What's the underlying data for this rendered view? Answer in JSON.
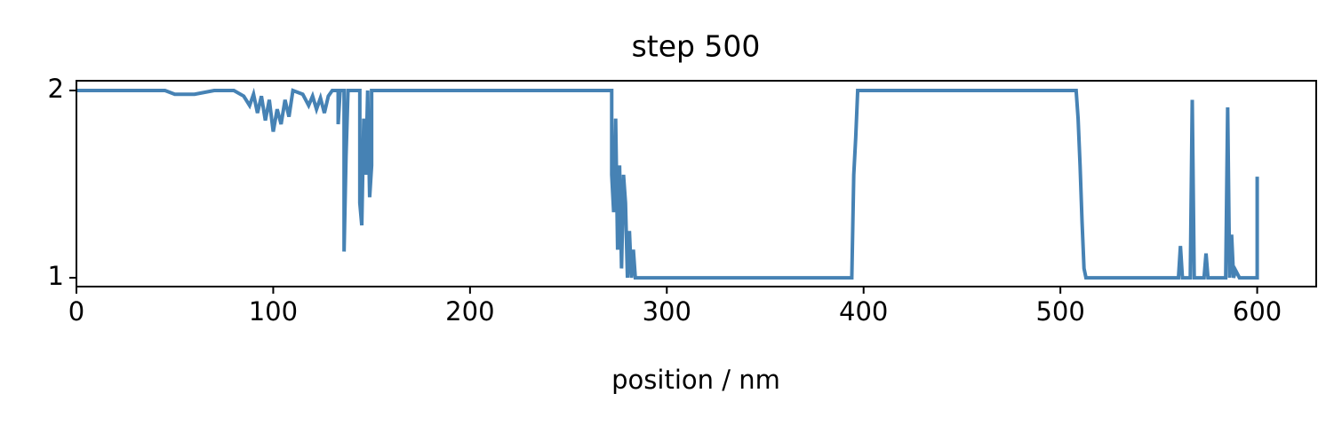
{
  "chart_data": {
    "type": "line",
    "title": "step 500",
    "x_label": "position / nm",
    "x": [
      0,
      45,
      50,
      60,
      70,
      80,
      85,
      88,
      90,
      92,
      94,
      96,
      98,
      100,
      102,
      104,
      106,
      108,
      110,
      115,
      118,
      120,
      122,
      124,
      126,
      128,
      130,
      133,
      133,
      134,
      136,
      136,
      137,
      138,
      144,
      144,
      145,
      146,
      147,
      148,
      149,
      150,
      150,
      272,
      272,
      273,
      274,
      275,
      276,
      277,
      278,
      279,
      280,
      281,
      282,
      283,
      284,
      394,
      395,
      396,
      397,
      508,
      509,
      510,
      511,
      512,
      513,
      560,
      561,
      562,
      566,
      567,
      568,
      573,
      574,
      575,
      584,
      585,
      586,
      587,
      588,
      589,
      591,
      600,
      600
    ],
    "series": [
      {
        "color": "#4682b4",
        "values": [
          2,
          2,
          1.98,
          1.98,
          2,
          2,
          1.97,
          1.92,
          1.98,
          1.88,
          1.97,
          1.84,
          1.95,
          1.78,
          1.9,
          1.82,
          1.95,
          1.86,
          2,
          1.98,
          1.92,
          1.97,
          1.9,
          1.96,
          1.88,
          1.97,
          2,
          2,
          1.82,
          2,
          2,
          1.14,
          1.65,
          2,
          2,
          1.4,
          1.28,
          1.85,
          1.55,
          2,
          1.43,
          1.6,
          2,
          2,
          1.55,
          1.35,
          1.85,
          1.15,
          1.6,
          1.05,
          1.55,
          1.4,
          1,
          1.25,
          1,
          1.15,
          1,
          1,
          1.55,
          1.75,
          2,
          2,
          1.85,
          1.6,
          1.3,
          1.05,
          1,
          1,
          1.17,
          1,
          1,
          1.95,
          1,
          1,
          1.13,
          1,
          1,
          1.91,
          1,
          1.23,
          1,
          1.04,
          1,
          1,
          1.54
        ]
      }
    ],
    "xlim": [
      0,
      630
    ],
    "ylim": [
      0.953,
      2.052
    ],
    "xticks": [
      0,
      100,
      200,
      300,
      400,
      500,
      600
    ],
    "yticks": [
      1,
      2
    ]
  }
}
